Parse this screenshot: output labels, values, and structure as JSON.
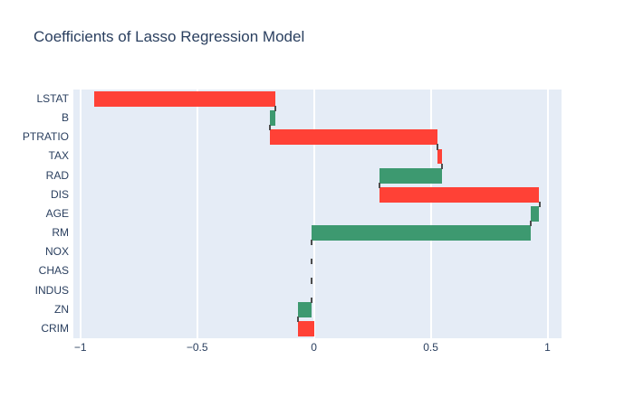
{
  "title": "Coefficients of Lasso Regression Model",
  "chart_data": {
    "type": "waterfall",
    "orientation": "horizontal",
    "title": "Coefficients of Lasso Regression Model",
    "xlabel": "",
    "ylabel": "",
    "xlim": [
      -1.03,
      1.06
    ],
    "x_ticks": [
      -1,
      -0.5,
      0,
      0.5,
      1
    ],
    "x_tick_labels": [
      "−1",
      "−0.5",
      "0",
      "0.5",
      "1"
    ],
    "categories_top_to_bottom": [
      "LSTAT",
      "B",
      "PTRATIO",
      "TAX",
      "RAD",
      "DIS",
      "AGE",
      "RM",
      "NOX",
      "CHAS",
      "INDUS",
      "ZN",
      "CRIM"
    ],
    "series": [
      {
        "label": "LSTAT",
        "coef": -0.775,
        "from": -0.165,
        "to": -0.94,
        "direction": "decreasing"
      },
      {
        "label": "B",
        "coef": 0.025,
        "from": -0.19,
        "to": -0.165,
        "direction": "increasing"
      },
      {
        "label": "PTRATIO",
        "coef": -0.72,
        "from": 0.53,
        "to": -0.19,
        "direction": "decreasing"
      },
      {
        "label": "TAX",
        "coef": -0.02,
        "from": 0.55,
        "to": 0.53,
        "direction": "decreasing"
      },
      {
        "label": "RAD",
        "coef": 0.27,
        "from": 0.28,
        "to": 0.55,
        "direction": "increasing"
      },
      {
        "label": "DIS",
        "coef": -0.685,
        "from": 0.965,
        "to": 0.28,
        "direction": "decreasing"
      },
      {
        "label": "AGE",
        "coef": 0.035,
        "from": 0.93,
        "to": 0.965,
        "direction": "increasing"
      },
      {
        "label": "RM",
        "coef": 0.94,
        "from": -0.01,
        "to": 0.93,
        "direction": "increasing"
      },
      {
        "label": "NOX",
        "coef": 0.0,
        "from": -0.01,
        "to": -0.01,
        "direction": "zero"
      },
      {
        "label": "CHAS",
        "coef": 0.0,
        "from": -0.01,
        "to": -0.01,
        "direction": "zero"
      },
      {
        "label": "INDUS",
        "coef": 0.0,
        "from": -0.01,
        "to": -0.01,
        "direction": "zero"
      },
      {
        "label": "ZN",
        "coef": 0.06,
        "from": -0.07,
        "to": -0.01,
        "direction": "increasing"
      },
      {
        "label": "CRIM",
        "coef": -0.07,
        "from": 0.0,
        "to": -0.07,
        "direction": "decreasing"
      }
    ],
    "grid": "on",
    "legend": "none",
    "colors": {
      "increasing": "#3D9970",
      "decreasing": "#FF4136",
      "connector": "#4D4D4D",
      "plot_background": "#E5ECF6",
      "paper_background": "#FFFFFF",
      "gridline": "#FFFFFF",
      "font": "#2A3F5F"
    }
  }
}
